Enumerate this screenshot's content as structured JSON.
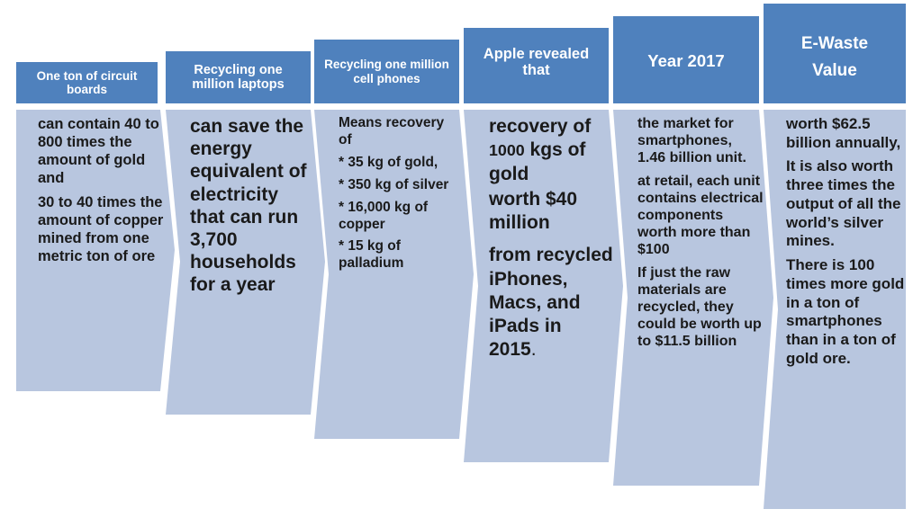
{
  "columns": [
    {
      "header": "One ton of circuit boards",
      "body": [
        "can contain 40 to 800 times the amount of gold and",
        "30 to 40 times the amount of copper mined from one metric ton of ore"
      ]
    },
    {
      "header": "Recycling one million laptops",
      "body": [
        "can save the energy equivalent of electricity that can run 3,700 households for a year"
      ]
    },
    {
      "header": "Recycling one million cell phones",
      "body": [
        "Means recovery of",
        "* 35 kg of gold,",
        "* 350 kg of silver",
        "* 16,000 kg of copper",
        "* 15 kg of palladium"
      ]
    },
    {
      "header": "Apple revealed that",
      "body": [
        "recovery of",
        "1000",
        "kgs of gold",
        "worth $40 million",
        "from recycled iPhones, Macs, and iPads in 2015",
        "."
      ]
    },
    {
      "header": "Year 2017",
      "body": [
        "the market for smartphones, 1.46 billion unit.",
        "at retail, each unit contains electrical components worth more than $100",
        "If just the raw materials are recycled, they could be worth up to $11.5 billion"
      ]
    },
    {
      "header_lines": [
        "E-Waste",
        "Value"
      ],
      "body": [
        "worth $62.5 billion annually,",
        "It is also worth three times the output of all the world’s silver mines.",
        "There is 100 times more gold in a ton of smartphones than in a ton of gold ore."
      ]
    }
  ],
  "colors": {
    "header": "#4f81bd",
    "header_text": "#ffffff",
    "body": "#b8c6df",
    "body_text": "#1a1a1a"
  }
}
